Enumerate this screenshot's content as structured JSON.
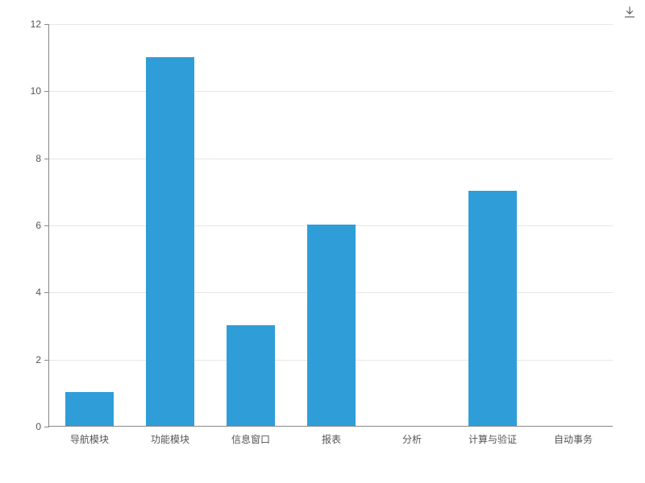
{
  "chart": {
    "type": "bar",
    "categories": [
      "导航模块",
      "功能模块",
      "信息窗口",
      "报表",
      "分析",
      "计算与验证",
      "自动事务"
    ],
    "values": [
      1,
      11,
      3,
      6,
      0,
      7,
      0
    ],
    "y": {
      "min": 0,
      "max": 12,
      "step": 2
    },
    "bar_color": "#2f9ed8",
    "bar_width_ratio": 0.6,
    "grid_color": "#e6e6e6",
    "axis_color": "#888888",
    "label_color": "#555555",
    "label_fontsize": 12,
    "background": "#ffffff"
  },
  "toolbox": {
    "download_title": "保存为图片"
  }
}
